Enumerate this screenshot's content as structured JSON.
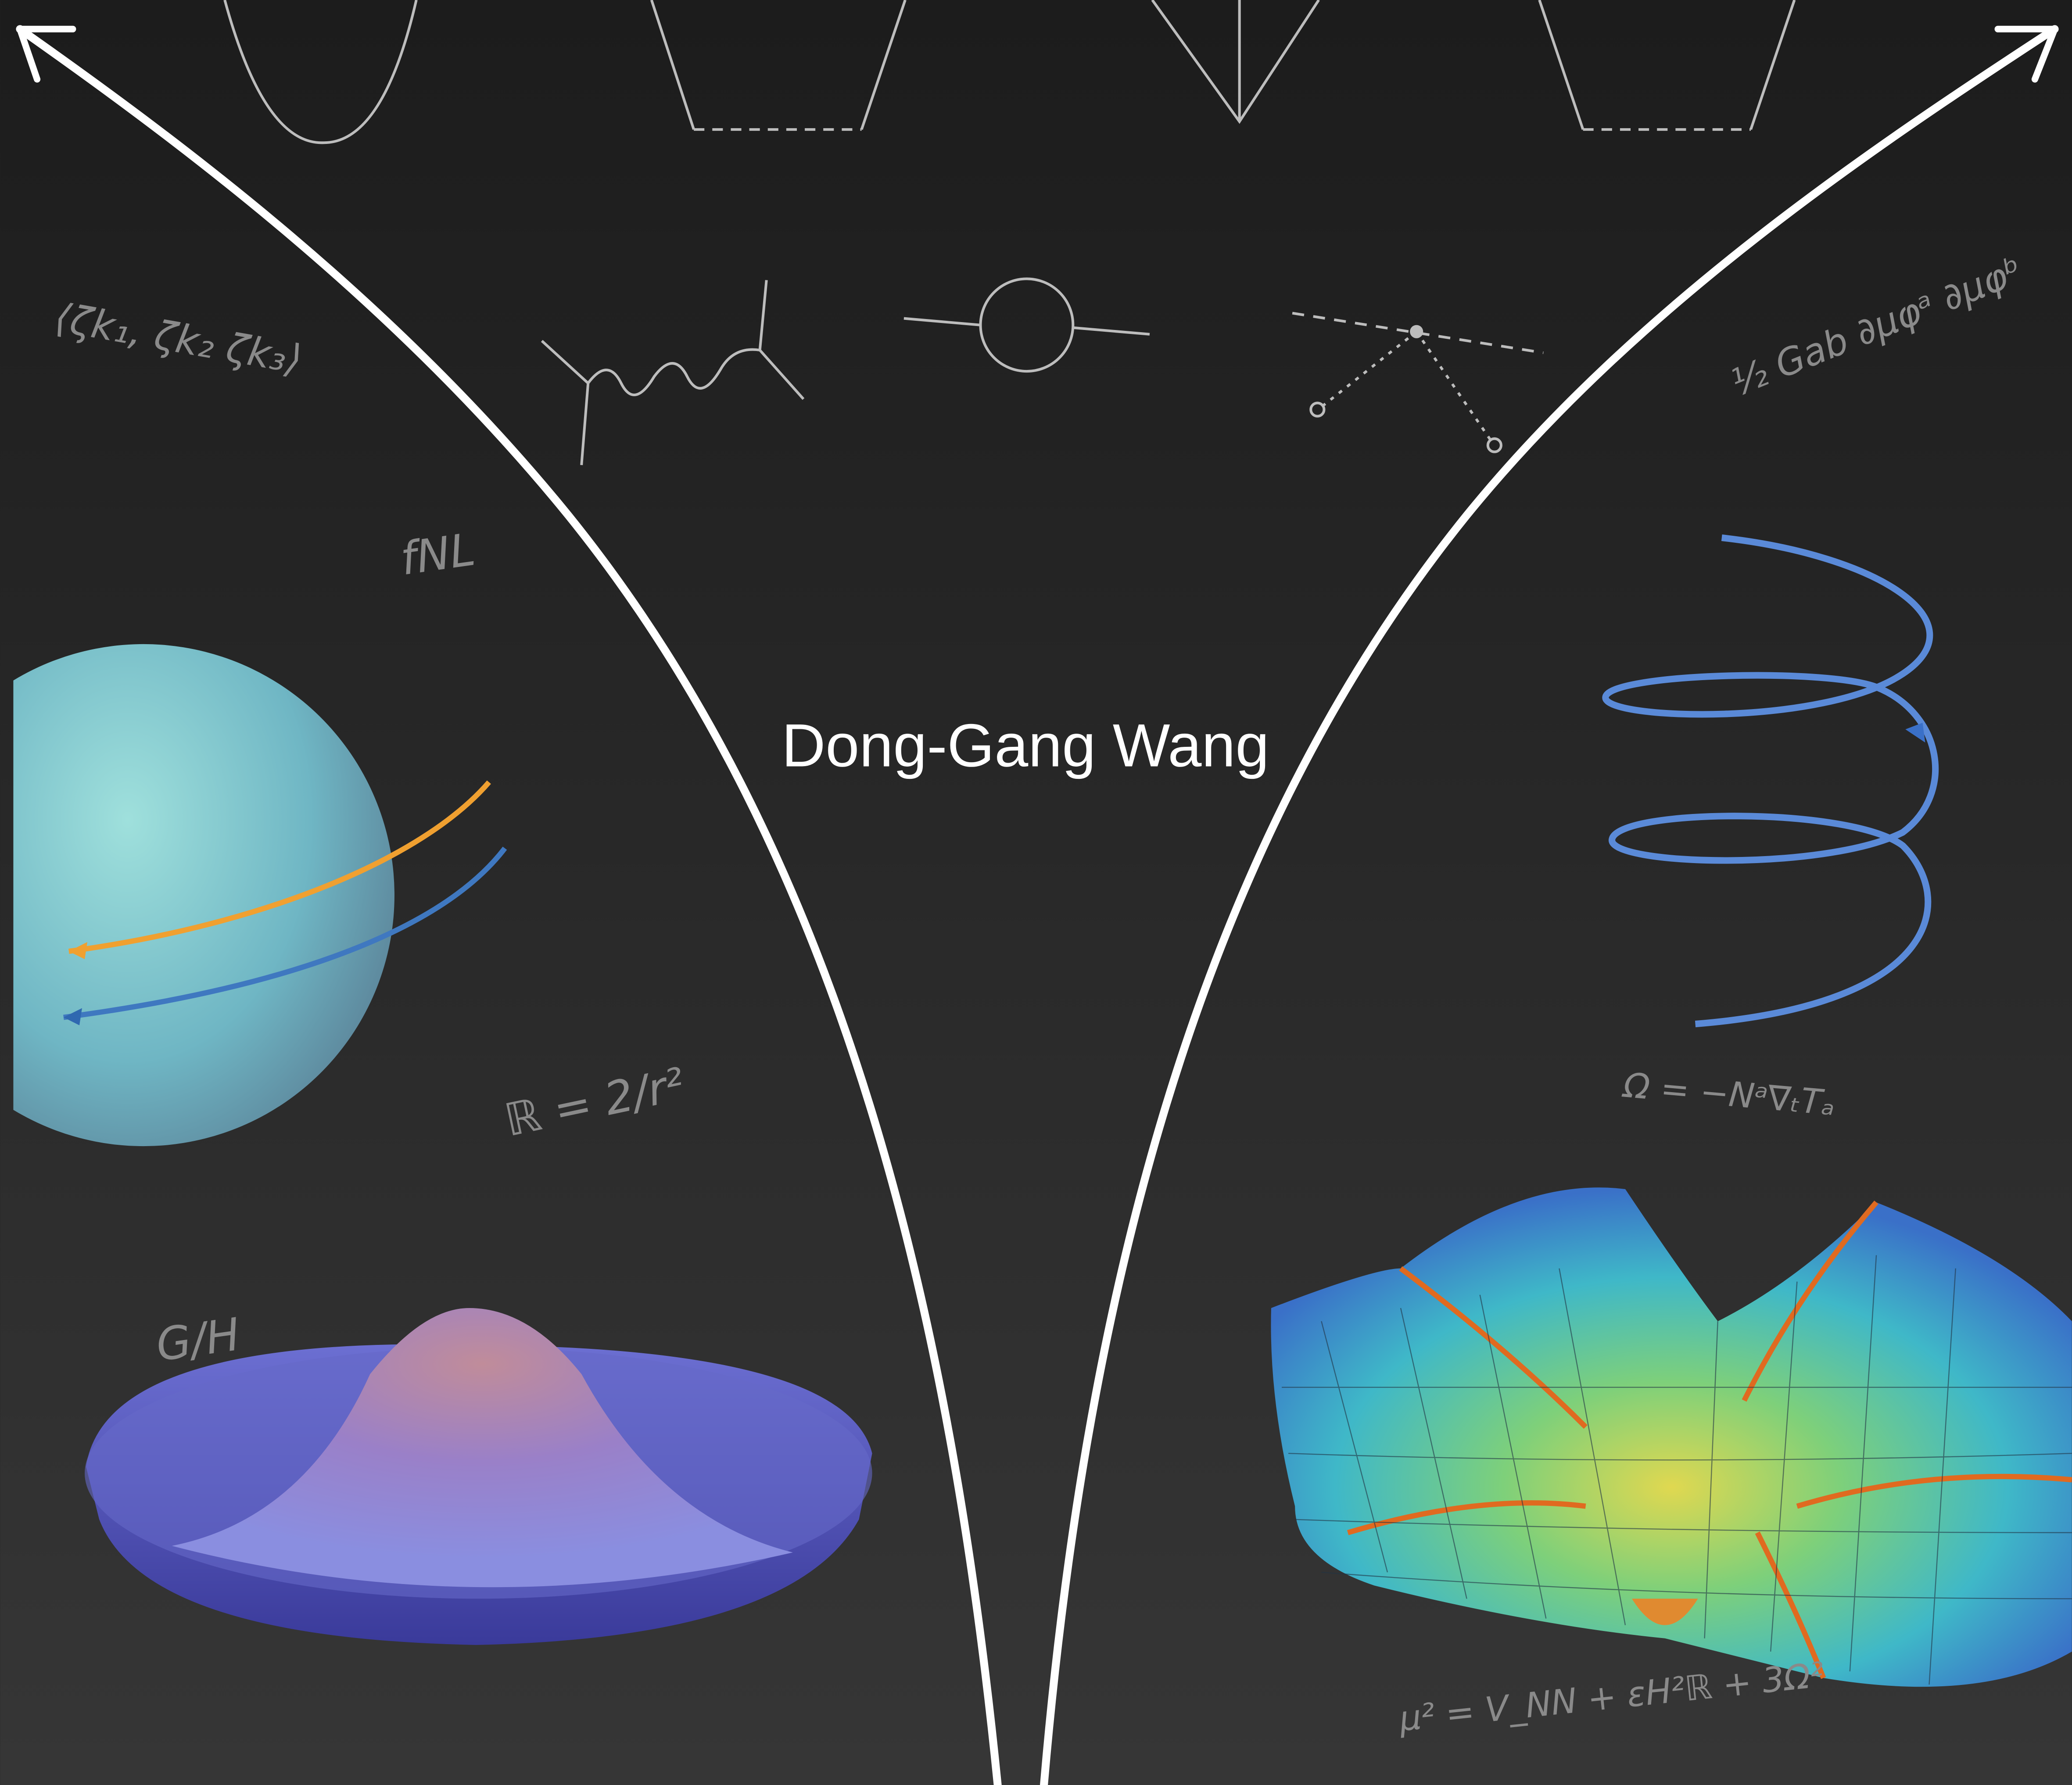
{
  "title": "Dong-Gang Wang",
  "annotations": {
    "correlator": "⟨ζk₁, ζk₂ ζk₃⟩",
    "fnl": "fNL",
    "curvature": "ℝ = 2/r²",
    "coset": "G/H",
    "kinetic": "½ Gab ∂μφᵃ ∂μφᵇ",
    "omega": "Ω = −Nᵃ∇ₜTₐ",
    "mass": "μ² = V_NN + εH²ℝ + 3Ω²"
  }
}
